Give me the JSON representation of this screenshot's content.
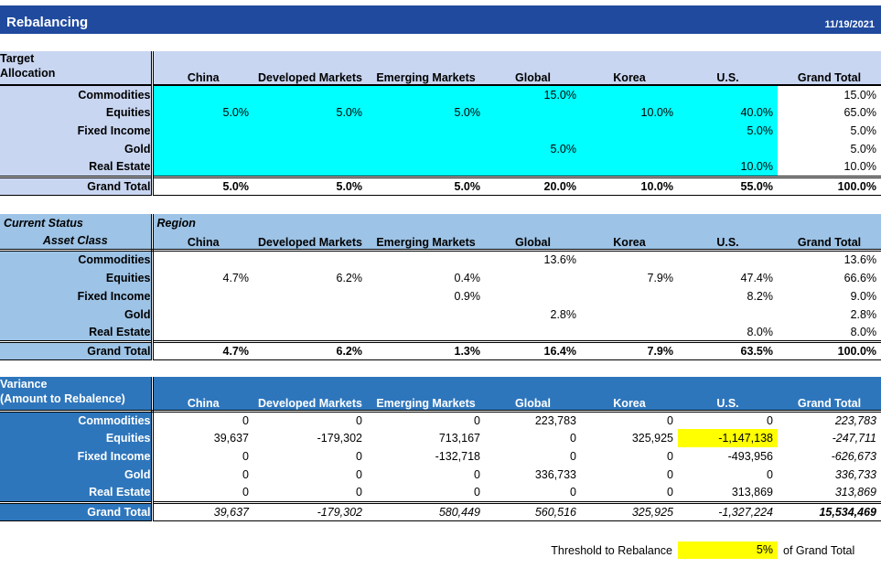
{
  "titlebar": {
    "title": "Rebalancing",
    "date": "11/19/2021"
  },
  "columns": [
    "China",
    "Developed Markets",
    "Emerging Markets",
    "Global",
    "Korea",
    "U.S.",
    "Grand Total"
  ],
  "target_allocation": {
    "title_line1": "Target",
    "title_line2": "Allocation",
    "rows": [
      {
        "label": "Commodities",
        "values": [
          "",
          "",
          "",
          "15.0%",
          "",
          "",
          "15.0%"
        ]
      },
      {
        "label": "Equities",
        "values": [
          "5.0%",
          "5.0%",
          "5.0%",
          "",
          "10.0%",
          "40.0%",
          "65.0%"
        ]
      },
      {
        "label": "Fixed Income",
        "values": [
          "",
          "",
          "",
          "",
          "",
          "5.0%",
          "5.0%"
        ]
      },
      {
        "label": "Gold",
        "values": [
          "",
          "",
          "",
          "5.0%",
          "",
          "",
          "5.0%"
        ]
      },
      {
        "label": "Real Estate",
        "values": [
          "",
          "",
          "",
          "",
          "",
          "10.0%",
          "10.0%"
        ]
      },
      {
        "label": "Grand Total",
        "is_total": true,
        "values": [
          "5.0%",
          "5.0%",
          "5.0%",
          "20.0%",
          "10.0%",
          "55.0%",
          "100.0%"
        ]
      }
    ]
  },
  "current_status": {
    "title": "Current Status",
    "region_label": "Region",
    "asset_class_label": "Asset Class",
    "rows": [
      {
        "label": "Commodities",
        "values": [
          "",
          "",
          "",
          "13.6%",
          "",
          "",
          "13.6%"
        ]
      },
      {
        "label": "Equities",
        "values": [
          "4.7%",
          "6.2%",
          "0.4%",
          "",
          "7.9%",
          "47.4%",
          "66.6%"
        ]
      },
      {
        "label": "Fixed Income",
        "values": [
          "",
          "",
          "0.9%",
          "",
          "",
          "8.2%",
          "9.0%"
        ]
      },
      {
        "label": "Gold",
        "values": [
          "",
          "",
          "",
          "2.8%",
          "",
          "",
          "2.8%"
        ]
      },
      {
        "label": "Real Estate",
        "values": [
          "",
          "",
          "",
          "",
          "",
          "8.0%",
          "8.0%"
        ]
      },
      {
        "label": "Grand Total",
        "is_total": true,
        "values": [
          "4.7%",
          "6.2%",
          "1.3%",
          "16.4%",
          "7.9%",
          "63.5%",
          "100.0%"
        ]
      }
    ]
  },
  "variance": {
    "title_line1": "Variance",
    "title_line2": "(Amount to Rebalence)",
    "rows": [
      {
        "label": "Commodities",
        "values": [
          "0",
          "0",
          "0",
          "223,783",
          "0",
          "0",
          "223,783"
        ]
      },
      {
        "label": "Equities",
        "highlight": 5,
        "values": [
          "39,637",
          "-179,302",
          "713,167",
          "0",
          "325,925",
          "-1,147,138",
          "-247,711"
        ]
      },
      {
        "label": "Fixed Income",
        "values": [
          "0",
          "0",
          "-132,718",
          "0",
          "0",
          "-493,956",
          "-626,673"
        ]
      },
      {
        "label": "Gold",
        "values": [
          "0",
          "0",
          "0",
          "336,733",
          "0",
          "0",
          "336,733"
        ]
      },
      {
        "label": "Real Estate",
        "values": [
          "0",
          "0",
          "0",
          "0",
          "0",
          "313,869",
          "313,869"
        ]
      },
      {
        "label": "Grand Total",
        "is_total": true,
        "values": [
          "39,637",
          "-179,302",
          "580,449",
          "560,516",
          "325,925",
          "-1,327,224",
          "15,534,469"
        ]
      }
    ]
  },
  "threshold": {
    "label": "Threshold to Rebalance",
    "value": "5%",
    "suffix": "of Grand Total"
  },
  "colors": {
    "titlebar": "#1F4A9E",
    "target_header": "#C9D6F1",
    "current_header": "#9DC3E6",
    "variance_header": "#2E76BC",
    "target_fill": "#00FFFF",
    "highlight": "#FFFF00"
  }
}
